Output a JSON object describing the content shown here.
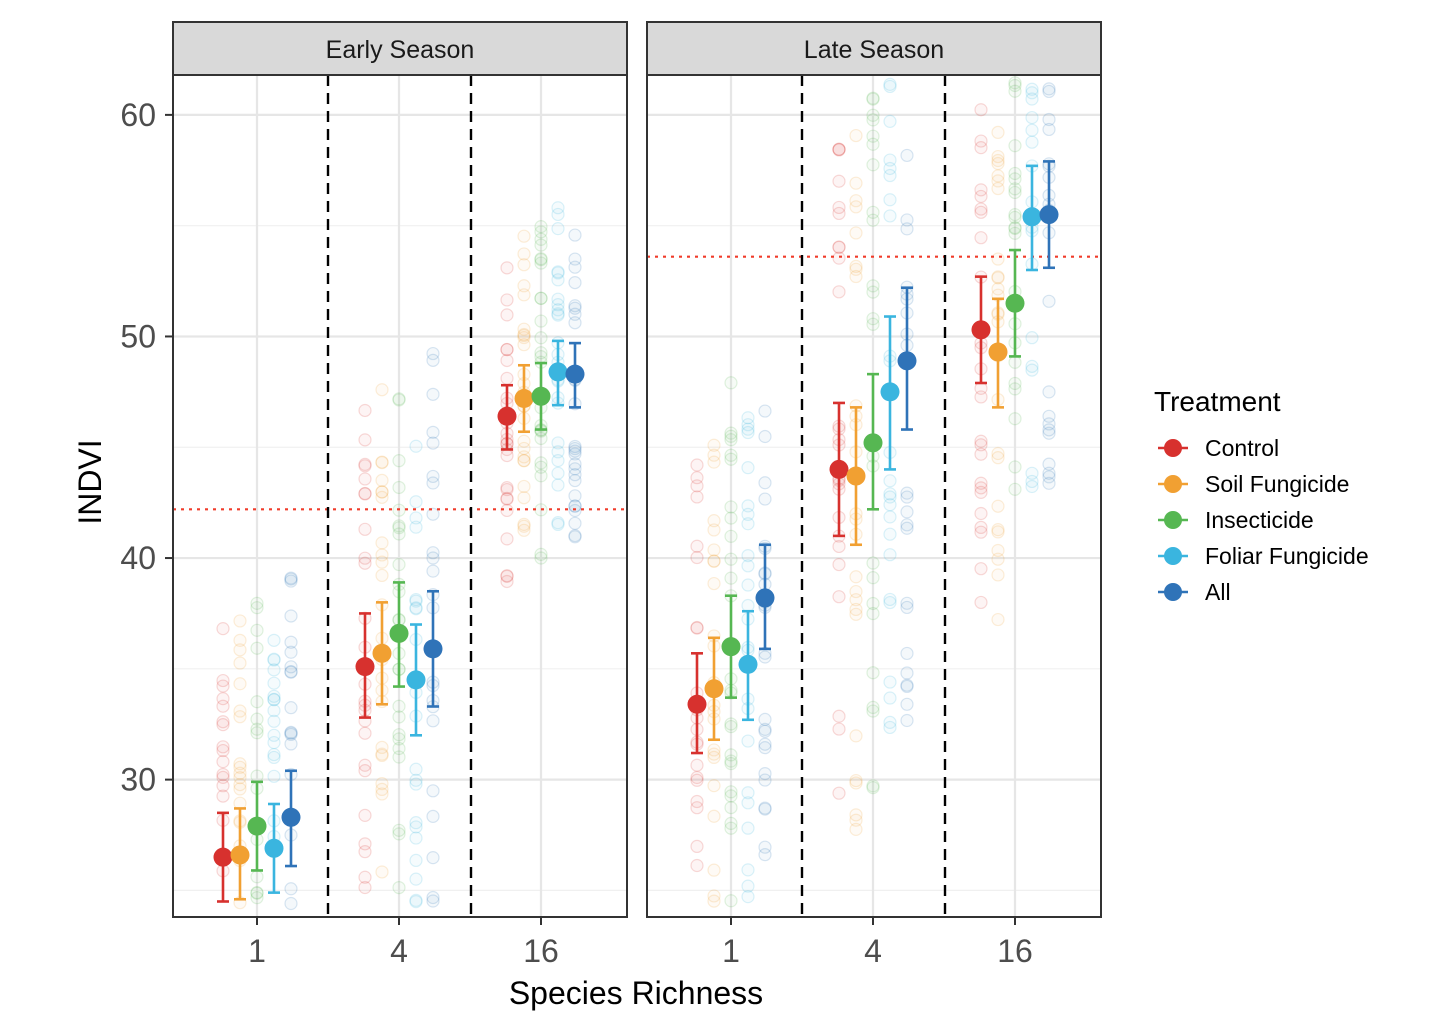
{
  "chart_data": {
    "type": "scatter",
    "xlabel": "Species Richness",
    "ylabel": "INDVI",
    "ylim": [
      23.8,
      61.8
    ],
    "yticks": [
      30,
      40,
      50,
      60
    ],
    "categories": [
      "1",
      "4",
      "16"
    ],
    "grid": true,
    "legend_title": "Treatment",
    "legend_placement": "right",
    "panels": [
      {
        "name": "Early Season",
        "reference_line": 42.2,
        "series": [
          {
            "name": "Control",
            "color": "#d7312e",
            "values": [
              26.5,
              35.1,
              46.4
            ],
            "lower": [
              24.5,
              32.8,
              44.9
            ],
            "upper": [
              28.5,
              37.5,
              47.8
            ]
          },
          {
            "name": "Soil Fungicide",
            "color": "#f1a032",
            "values": [
              26.6,
              35.7,
              47.2
            ],
            "lower": [
              24.6,
              33.4,
              45.7
            ],
            "upper": [
              28.7,
              38.0,
              48.7
            ]
          },
          {
            "name": "Insecticide",
            "color": "#56b752",
            "values": [
              27.9,
              36.6,
              47.3
            ],
            "lower": [
              25.9,
              34.2,
              45.8
            ],
            "upper": [
              29.9,
              38.9,
              48.8
            ]
          },
          {
            "name": "Foliar Fungicide",
            "color": "#3ab5df",
            "values": [
              26.9,
              34.5,
              48.4
            ],
            "lower": [
              24.9,
              32.0,
              46.9
            ],
            "upper": [
              28.9,
              37.0,
              49.8
            ]
          },
          {
            "name": "All",
            "color": "#2f73b8",
            "values": [
              28.3,
              35.9,
              48.3
            ],
            "lower": [
              26.1,
              33.3,
              46.8
            ],
            "upper": [
              30.4,
              38.5,
              49.7
            ]
          }
        ]
      },
      {
        "name": "Late Season",
        "reference_line": 53.6,
        "series": [
          {
            "name": "Control",
            "color": "#d7312e",
            "values": [
              33.4,
              44.0,
              50.3
            ],
            "lower": [
              31.2,
              41.0,
              47.9
            ],
            "upper": [
              35.7,
              47.0,
              52.7
            ]
          },
          {
            "name": "Soil Fungicide",
            "color": "#f1a032",
            "values": [
              34.1,
              43.7,
              49.3
            ],
            "lower": [
              31.8,
              40.6,
              46.8
            ],
            "upper": [
              36.4,
              46.8,
              51.7
            ]
          },
          {
            "name": "Insecticide",
            "color": "#56b752",
            "values": [
              36.0,
              45.2,
              51.5
            ],
            "lower": [
              33.7,
              42.2,
              49.1
            ],
            "upper": [
              38.3,
              48.3,
              53.9
            ]
          },
          {
            "name": "Foliar Fungicide",
            "color": "#3ab5df",
            "values": [
              35.2,
              47.5,
              55.4
            ],
            "lower": [
              32.7,
              44.0,
              53.0
            ],
            "upper": [
              37.6,
              50.9,
              57.7
            ]
          },
          {
            "name": "All",
            "color": "#2f73b8",
            "values": [
              38.2,
              48.9,
              55.5
            ],
            "lower": [
              35.9,
              45.8,
              53.1
            ],
            "upper": [
              40.6,
              52.2,
              57.9
            ]
          }
        ]
      }
    ]
  }
}
